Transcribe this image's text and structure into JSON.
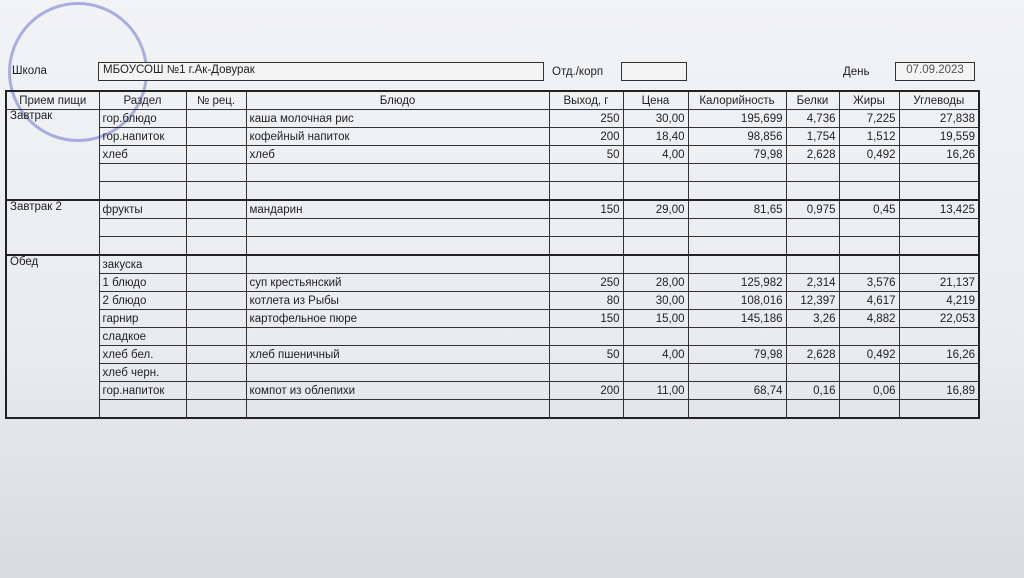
{
  "header": {
    "school_label": "Школа",
    "school": "МБОУСОШ №1 г.Ак-Довурак",
    "dept_label": "Отд./корп",
    "day_label": "День",
    "date": "07.09.2023"
  },
  "table": {
    "columns": [
      "Прием пищи",
      "Раздел",
      "№ рец.",
      "Блюдо",
      "Выход, г",
      "Цена",
      "Калорийность",
      "Белки",
      "Жиры",
      "Углеводы"
    ],
    "blocks": [
      {
        "meal": "Завтрак",
        "rows": [
          {
            "section": "гор.блюдо",
            "dish": "каша молочная рис",
            "yield": "250",
            "price": "30,00",
            "kcal": "195,699",
            "protein": "4,736",
            "fat": "7,225",
            "carbs": "27,838"
          },
          {
            "section": "гор.напиток",
            "dish": "кофейный напиток",
            "yield": "200",
            "price": "18,40",
            "kcal": "98,856",
            "protein": "1,754",
            "fat": "1,512",
            "carbs": "19,559"
          },
          {
            "section": "хлеб",
            "dish": "хлеб",
            "yield": "50",
            "price": "4,00",
            "kcal": "79,98",
            "protein": "2,628",
            "fat": "0,492",
            "carbs": "16,26"
          },
          {},
          {}
        ]
      },
      {
        "meal": "Завтрак 2",
        "rows": [
          {
            "section": "фрукты",
            "dish": "мандарин",
            "yield": "150",
            "price": "29,00",
            "kcal": "81,65",
            "protein": "0,975",
            "fat": "0,45",
            "carbs": "13,425"
          },
          {},
          {}
        ]
      },
      {
        "meal": "Обед",
        "rows": [
          {
            "section": "закуска"
          },
          {
            "section": "1 блюдо",
            "dish": "суп крестьянский",
            "yield": "250",
            "price": "28,00",
            "kcal": "125,982",
            "protein": "2,314",
            "fat": "3,576",
            "carbs": "21,137"
          },
          {
            "section": "2 блюдо",
            "dish": "котлета из Рыбы",
            "yield": "80",
            "price": "30,00",
            "kcal": "108,016",
            "protein": "12,397",
            "fat": "4,617",
            "carbs": "4,219"
          },
          {
            "section": "гарнир",
            "dish": "картофельное пюре",
            "yield": "150",
            "price": "15,00",
            "kcal": "145,186",
            "protein": "3,26",
            "fat": "4,882",
            "carbs": "22,053"
          },
          {
            "section": "сладкое"
          },
          {
            "section": "хлеб бел.",
            "dish": "хлеб пшеничный",
            "yield": "50",
            "price": "4,00",
            "kcal": "79,98",
            "protein": "2,628",
            "fat": "0,492",
            "carbs": "16,26"
          },
          {
            "section": "хлеб черн."
          },
          {
            "section": "гор.напиток",
            "dish": "компот из облепихи",
            "yield": "200",
            "price": "11,00",
            "kcal": "68,74",
            "protein": "0,16",
            "fat": "0,06",
            "carbs": "16,89"
          },
          {}
        ]
      }
    ]
  }
}
